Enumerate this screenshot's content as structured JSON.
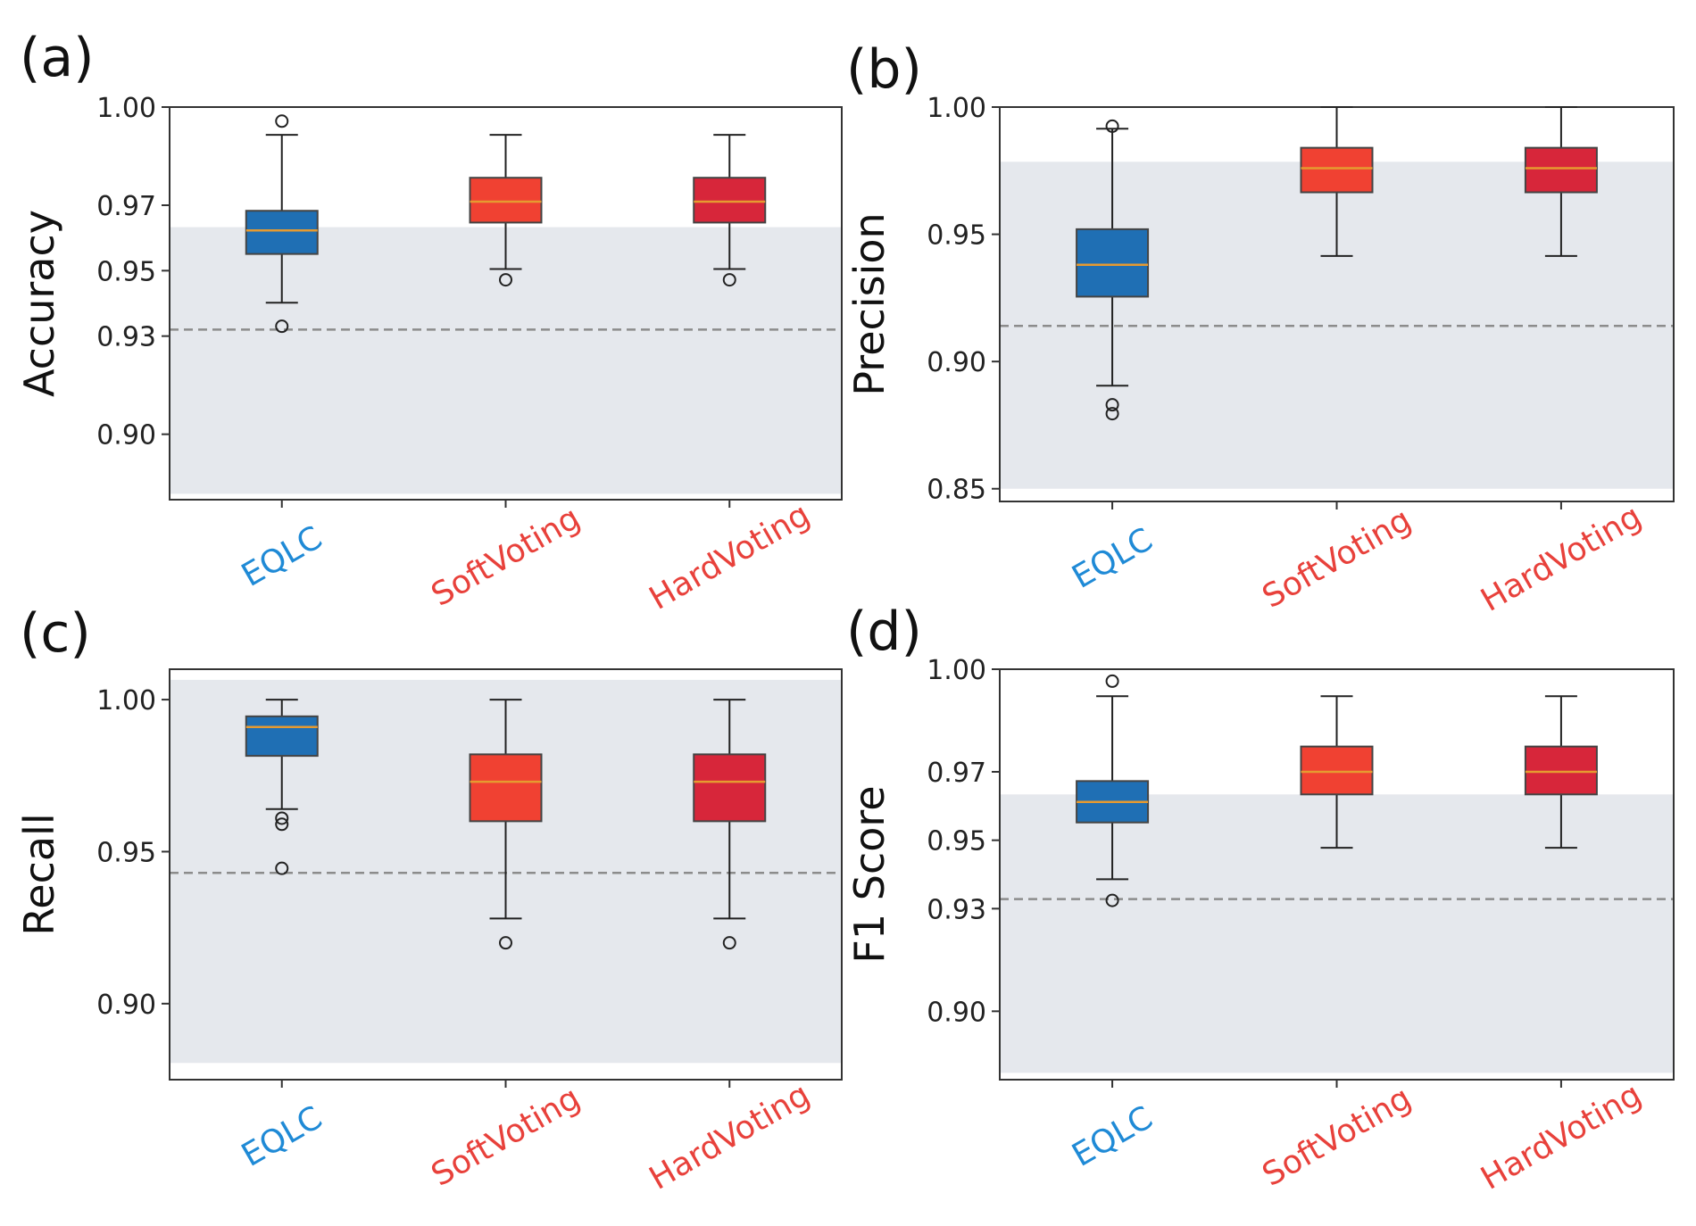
{
  "figure": {
    "colors": {
      "EQLC": "#1f6fb4",
      "SoftVoting": "#f04132",
      "HardVoting": "#d7263a",
      "label_eqlc": "#1f8ad6",
      "label_voting": "#e8413b",
      "shade": "#e5e8ed",
      "reference_line": "#8c8c8c",
      "median": "#e69a30"
    }
  },
  "chart_data": [
    {
      "panel": "(a)",
      "type": "box",
      "ylabel": "Accuracy",
      "categories": [
        "EQLC",
        "SoftVoting",
        "HardVoting"
      ],
      "ylim": [
        0.88,
        1.0
      ],
      "yticks": [
        0.9,
        0.93,
        0.95,
        0.97,
        1.0
      ],
      "ytick_labels": [
        "0.90",
        "0.93",
        "0.95",
        "0.97",
        "1.00"
      ],
      "shaded_band": [
        0.8818,
        0.9633
      ],
      "reference_line": 0.932,
      "boxes": [
        {
          "name": "EQLC",
          "whisker_low": 0.9402,
          "q1": 0.9551,
          "median": 0.9623,
          "q3": 0.9683,
          "whisker_high": 0.9915,
          "outliers": [
            0.933,
            0.9957
          ]
        },
        {
          "name": "SoftVoting",
          "whisker_low": 0.9505,
          "q1": 0.9647,
          "median": 0.9711,
          "q3": 0.9784,
          "whisker_high": 0.9915,
          "outliers": [
            0.9472
          ]
        },
        {
          "name": "HardVoting",
          "whisker_low": 0.9505,
          "q1": 0.9647,
          "median": 0.9711,
          "q3": 0.9784,
          "whisker_high": 0.9915,
          "outliers": [
            0.9472
          ]
        }
      ]
    },
    {
      "panel": "(b)",
      "type": "box",
      "ylabel": "Precision",
      "categories": [
        "EQLC",
        "SoftVoting",
        "HardVoting"
      ],
      "ylim": [
        0.845,
        1.0
      ],
      "yticks": [
        0.85,
        0.9,
        0.95,
        1.0
      ],
      "ytick_labels": [
        "0.85",
        "0.90",
        "0.95",
        "1.00"
      ],
      "shaded_band": [
        0.85,
        0.9785
      ],
      "reference_line": 0.914,
      "boxes": [
        {
          "name": "EQLC",
          "whisker_low": 0.8905,
          "q1": 0.9255,
          "median": 0.938,
          "q3": 0.952,
          "whisker_high": 0.9915,
          "outliers": [
            0.883,
            0.8795,
            0.9925
          ]
        },
        {
          "name": "SoftVoting",
          "whisker_low": 0.9415,
          "q1": 0.9665,
          "median": 0.976,
          "q3": 0.984,
          "whisker_high": 1.0,
          "outliers": []
        },
        {
          "name": "HardVoting",
          "whisker_low": 0.9415,
          "q1": 0.9665,
          "median": 0.976,
          "q3": 0.984,
          "whisker_high": 1.0,
          "outliers": []
        }
      ]
    },
    {
      "panel": "(c)",
      "type": "box",
      "ylabel": "Recall",
      "categories": [
        "EQLC",
        "SoftVoting",
        "HardVoting"
      ],
      "ylim": [
        0.875,
        1.01
      ],
      "yticks": [
        0.9,
        0.95,
        1.0
      ],
      "ytick_labels": [
        "0.90",
        "0.95",
        "1.00"
      ],
      "shaded_band": [
        0.8805,
        1.0065
      ],
      "reference_line": 0.943,
      "boxes": [
        {
          "name": "EQLC",
          "whisker_low": 0.964,
          "q1": 0.9815,
          "median": 0.991,
          "q3": 0.9945,
          "whisker_high": 1.0,
          "outliers": [
            0.961,
            0.959,
            0.9445
          ]
        },
        {
          "name": "SoftVoting",
          "whisker_low": 0.928,
          "q1": 0.96,
          "median": 0.973,
          "q3": 0.982,
          "whisker_high": 1.0,
          "outliers": [
            0.92
          ]
        },
        {
          "name": "HardVoting",
          "whisker_low": 0.928,
          "q1": 0.96,
          "median": 0.973,
          "q3": 0.982,
          "whisker_high": 1.0,
          "outliers": [
            0.92
          ]
        }
      ]
    },
    {
      "panel": "(d)",
      "type": "box",
      "ylabel": "F1 Score",
      "categories": [
        "EQLC",
        "SoftVoting",
        "HardVoting"
      ],
      "ylim": [
        0.88,
        1.0
      ],
      "yticks": [
        0.9,
        0.93,
        0.95,
        0.97,
        1.0
      ],
      "ytick_labels": [
        "0.90",
        "0.93",
        "0.95",
        "0.97",
        "1.00"
      ],
      "shaded_band": [
        0.882,
        0.9634
      ],
      "reference_line": 0.9328,
      "boxes": [
        {
          "name": "EQLC",
          "whisker_low": 0.9386,
          "q1": 0.9552,
          "median": 0.9612,
          "q3": 0.9673,
          "whisker_high": 0.9921,
          "outliers": [
            0.9324,
            0.9965
          ]
        },
        {
          "name": "SoftVoting",
          "whisker_low": 0.9478,
          "q1": 0.9634,
          "median": 0.97,
          "q3": 0.9774,
          "whisker_high": 0.9921,
          "outliers": []
        },
        {
          "name": "HardVoting",
          "whisker_low": 0.9478,
          "q1": 0.9634,
          "median": 0.97,
          "q3": 0.9774,
          "whisker_high": 0.9921,
          "outliers": []
        }
      ]
    }
  ]
}
